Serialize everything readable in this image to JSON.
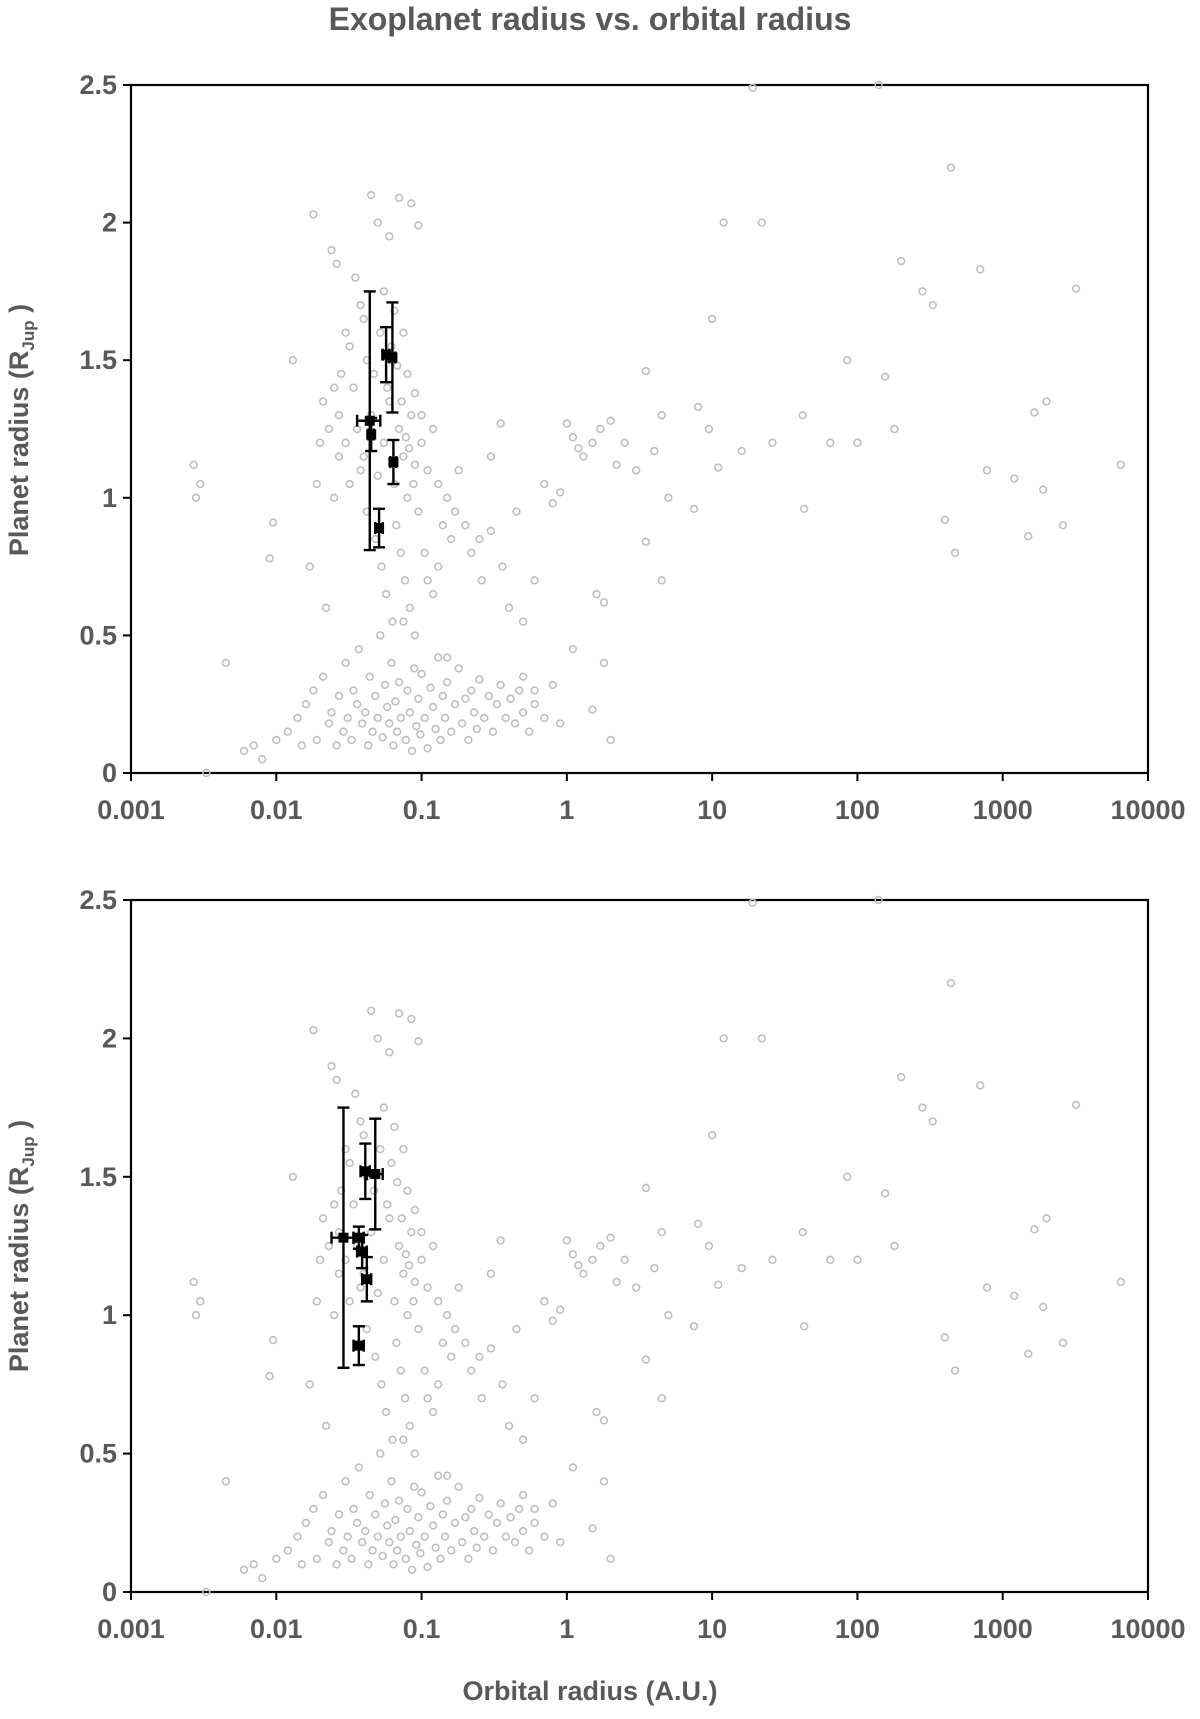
{
  "figure": {
    "title": "Exoplanet radius vs. orbital radius",
    "xlabel": "Orbital radius (A.U.)",
    "ylabel_main": "Planet radius (R",
    "ylabel_sub": "Jup",
    "ylabel_tail": " )"
  },
  "chart_data": [
    {
      "type": "scatter",
      "title": "Exoplanet radius vs. orbital radius",
      "xlabel": "",
      "ylabel": "Planet radius (RJup )",
      "xscale": "log",
      "xlim": [
        0.001,
        10000
      ],
      "ylim": [
        0,
        2.5
      ],
      "xticks": [
        "0.001",
        "0.01",
        "0.1",
        "1",
        "10",
        "100",
        "1000",
        "10000"
      ],
      "yticks": [
        "0",
        "0.5",
        "1",
        "1.5",
        "2",
        "2.5"
      ],
      "grid": false,
      "legend": "none",
      "colors": {
        "background_points": "#bfbfbf",
        "highlight_points": "#000000"
      },
      "series": [
        {
          "role": "highlight",
          "points": [
            {
              "x": 0.044,
              "y": 1.28,
              "xerr": 0.008,
              "yerr": 0.47
            },
            {
              "x": 0.057,
              "y": 1.52,
              "xerr": 0.003,
              "yerr": 0.1
            },
            {
              "x": 0.063,
              "y": 1.51,
              "xerr": 0.003,
              "yerr": 0.2
            },
            {
              "x": 0.045,
              "y": 1.23,
              "xerr": 0.002,
              "yerr": 0.06
            },
            {
              "x": 0.064,
              "y": 1.13,
              "xerr": 0.003,
              "yerr": 0.08
            },
            {
              "x": 0.051,
              "y": 0.89,
              "xerr": 0.003,
              "yerr": 0.07
            }
          ]
        }
      ]
    },
    {
      "type": "scatter",
      "xlabel": "Orbital radius (A.U.)",
      "ylabel": "Planet radius (RJup )",
      "xscale": "log",
      "xlim": [
        0.001,
        10000
      ],
      "ylim": [
        0,
        2.5
      ],
      "xticks": [
        "0.001",
        "0.01",
        "0.1",
        "1",
        "10",
        "100",
        "1000",
        "10000"
      ],
      "yticks": [
        "0",
        "0.5",
        "1",
        "1.5",
        "2",
        "2.5"
      ],
      "grid": false,
      "legend": "none",
      "colors": {
        "background_points": "#bfbfbf",
        "highlight_points": "#000000"
      },
      "series": [
        {
          "role": "highlight",
          "points": [
            {
              "x": 0.029,
              "y": 1.28,
              "xerr": 0.005,
              "yerr": 0.47
            },
            {
              "x": 0.041,
              "y": 1.52,
              "xerr": 0.003,
              "yerr": 0.1
            },
            {
              "x": 0.048,
              "y": 1.51,
              "xerr": 0.006,
              "yerr": 0.2
            },
            {
              "x": 0.037,
              "y": 1.28,
              "xerr": 0.003,
              "yerr": 0.04
            },
            {
              "x": 0.039,
              "y": 1.23,
              "xerr": 0.003,
              "yerr": 0.06
            },
            {
              "x": 0.042,
              "y": 1.13,
              "xerr": 0.003,
              "yerr": 0.08
            },
            {
              "x": 0.037,
              "y": 0.89,
              "xerr": 0.003,
              "yerr": 0.07
            }
          ]
        }
      ]
    }
  ],
  "background_points": [
    [
      0.0027,
      1.12
    ],
    [
      0.0028,
      1.0
    ],
    [
      0.003,
      1.05
    ],
    [
      0.0033,
      0.0
    ],
    [
      0.0045,
      0.4
    ],
    [
      0.009,
      0.78
    ],
    [
      0.0095,
      0.91
    ],
    [
      0.018,
      2.03
    ],
    [
      0.024,
      1.9
    ],
    [
      0.026,
      1.85
    ],
    [
      0.013,
      1.5
    ],
    [
      0.017,
      0.75
    ],
    [
      0.02,
      1.2
    ],
    [
      0.022,
      0.6
    ],
    [
      0.045,
      2.1
    ],
    [
      0.07,
      2.09
    ],
    [
      0.085,
      2.07
    ],
    [
      0.05,
      2.0
    ],
    [
      0.095,
      1.99
    ],
    [
      0.06,
      1.95
    ],
    [
      0.035,
      1.8
    ],
    [
      0.04,
      1.65
    ],
    [
      0.038,
      1.7
    ],
    [
      0.03,
      1.6
    ],
    [
      0.028,
      1.45
    ],
    [
      0.025,
      1.4
    ],
    [
      0.027,
      1.3
    ],
    [
      0.032,
      1.55
    ],
    [
      0.055,
      1.75
    ],
    [
      0.065,
      1.68
    ],
    [
      0.075,
      1.6
    ],
    [
      0.08,
      1.45
    ],
    [
      0.09,
      1.38
    ],
    [
      0.1,
      1.3
    ],
    [
      0.12,
      1.25
    ],
    [
      0.11,
      1.1
    ],
    [
      0.13,
      1.05
    ],
    [
      0.15,
      1.0
    ],
    [
      0.17,
      0.95
    ],
    [
      0.2,
      0.9
    ],
    [
      0.25,
      0.85
    ],
    [
      0.3,
      1.15
    ],
    [
      0.35,
      1.27
    ],
    [
      0.4,
      0.6
    ],
    [
      0.45,
      0.95
    ],
    [
      0.5,
      0.55
    ],
    [
      0.6,
      0.7
    ],
    [
      0.7,
      1.05
    ],
    [
      0.8,
      0.98
    ],
    [
      0.9,
      1.02
    ],
    [
      1.0,
      1.27
    ],
    [
      1.1,
      1.22
    ],
    [
      1.2,
      1.18
    ],
    [
      1.3,
      1.15
    ],
    [
      1.5,
      1.2
    ],
    [
      1.7,
      1.25
    ],
    [
      2.0,
      1.28
    ],
    [
      2.2,
      1.12
    ],
    [
      2.5,
      1.2
    ],
    [
      3.0,
      1.1
    ],
    [
      3.5,
      1.46
    ],
    [
      4.0,
      1.17
    ],
    [
      4.5,
      1.3
    ],
    [
      5.0,
      1.0
    ],
    [
      4.5,
      0.7
    ],
    [
      3.5,
      0.84
    ],
    [
      1.6,
      0.65
    ],
    [
      1.8,
      0.62
    ],
    [
      1.5,
      0.23
    ],
    [
      2.0,
      0.12
    ],
    [
      1.8,
      0.4
    ],
    [
      1.1,
      0.45
    ],
    [
      0.6,
      0.3
    ],
    [
      0.5,
      0.35
    ],
    [
      0.15,
      0.42
    ],
    [
      7.5,
      0.96
    ],
    [
      8.0,
      1.33
    ],
    [
      9.5,
      1.25
    ],
    [
      10.0,
      1.65
    ],
    [
      11.0,
      1.11
    ],
    [
      12.0,
      2.0
    ],
    [
      16.0,
      1.17
    ],
    [
      19.0,
      2.49
    ],
    [
      22.0,
      2.0
    ],
    [
      26.0,
      1.2
    ],
    [
      42.0,
      1.3
    ],
    [
      43.0,
      0.96
    ],
    [
      65.0,
      1.2
    ],
    [
      85.0,
      1.5
    ],
    [
      100.0,
      1.2
    ],
    [
      140.0,
      2.5
    ],
    [
      155.0,
      1.44
    ],
    [
      180.0,
      1.25
    ],
    [
      200.0,
      1.86
    ],
    [
      280.0,
      1.75
    ],
    [
      330.0,
      1.7
    ],
    [
      400.0,
      0.92
    ],
    [
      440.0,
      2.2
    ],
    [
      470.0,
      0.8
    ],
    [
      700.0,
      1.83
    ],
    [
      780.0,
      1.1
    ],
    [
      1200.0,
      1.07
    ],
    [
      1500.0,
      0.86
    ],
    [
      1650.0,
      1.31
    ],
    [
      1900.0,
      1.03
    ],
    [
      2000.0,
      1.35
    ],
    [
      2600.0,
      0.9
    ],
    [
      3200.0,
      1.76
    ],
    [
      6500.0,
      1.12
    ],
    [
      0.006,
      0.08
    ],
    [
      0.007,
      0.1
    ],
    [
      0.008,
      0.05
    ],
    [
      0.01,
      0.12
    ],
    [
      0.012,
      0.15
    ],
    [
      0.014,
      0.2
    ],
    [
      0.015,
      0.1
    ],
    [
      0.016,
      0.25
    ],
    [
      0.018,
      0.3
    ],
    [
      0.019,
      0.12
    ],
    [
      0.021,
      0.35
    ],
    [
      0.023,
      0.18
    ],
    [
      0.024,
      0.22
    ],
    [
      0.026,
      0.1
    ],
    [
      0.027,
      0.28
    ],
    [
      0.029,
      0.15
    ],
    [
      0.03,
      0.4
    ],
    [
      0.031,
      0.2
    ],
    [
      0.033,
      0.12
    ],
    [
      0.034,
      0.3
    ],
    [
      0.036,
      0.25
    ],
    [
      0.037,
      0.45
    ],
    [
      0.039,
      0.18
    ],
    [
      0.041,
      0.22
    ],
    [
      0.043,
      0.1
    ],
    [
      0.044,
      0.35
    ],
    [
      0.046,
      0.15
    ],
    [
      0.048,
      0.28
    ],
    [
      0.05,
      0.2
    ],
    [
      0.052,
      0.5
    ],
    [
      0.054,
      0.13
    ],
    [
      0.056,
      0.32
    ],
    [
      0.058,
      0.24
    ],
    [
      0.06,
      0.18
    ],
    [
      0.062,
      0.4
    ],
    [
      0.064,
      0.1
    ],
    [
      0.066,
      0.26
    ],
    [
      0.068,
      0.15
    ],
    [
      0.07,
      0.33
    ],
    [
      0.072,
      0.2
    ],
    [
      0.075,
      0.55
    ],
    [
      0.078,
      0.12
    ],
    [
      0.08,
      0.3
    ],
    [
      0.083,
      0.22
    ],
    [
      0.086,
      0.08
    ],
    [
      0.089,
      0.38
    ],
    [
      0.092,
      0.17
    ],
    [
      0.095,
      0.27
    ],
    [
      0.098,
      0.14
    ],
    [
      0.1,
      0.36
    ],
    [
      0.105,
      0.2
    ],
    [
      0.11,
      0.09
    ],
    [
      0.115,
      0.31
    ],
    [
      0.12,
      0.24
    ],
    [
      0.125,
      0.16
    ],
    [
      0.13,
      0.42
    ],
    [
      0.135,
      0.12
    ],
    [
      0.14,
      0.28
    ],
    [
      0.145,
      0.2
    ],
    [
      0.15,
      0.33
    ],
    [
      0.16,
      0.15
    ],
    [
      0.17,
      0.25
    ],
    [
      0.18,
      0.38
    ],
    [
      0.19,
      0.18
    ],
    [
      0.2,
      0.27
    ],
    [
      0.21,
      0.12
    ],
    [
      0.22,
      0.3
    ],
    [
      0.23,
      0.22
    ],
    [
      0.24,
      0.16
    ],
    [
      0.25,
      0.34
    ],
    [
      0.27,
      0.2
    ],
    [
      0.29,
      0.28
    ],
    [
      0.31,
      0.15
    ],
    [
      0.33,
      0.25
    ],
    [
      0.35,
      0.32
    ],
    [
      0.38,
      0.2
    ],
    [
      0.41,
      0.27
    ],
    [
      0.44,
      0.18
    ],
    [
      0.47,
      0.3
    ],
    [
      0.5,
      0.22
    ],
    [
      0.55,
      0.15
    ],
    [
      0.6,
      0.25
    ],
    [
      0.7,
      0.2
    ],
    [
      0.8,
      0.32
    ],
    [
      0.9,
      0.18
    ],
    [
      0.04,
      1.15
    ],
    [
      0.045,
      1.3
    ],
    [
      0.05,
      1.08
    ],
    [
      0.055,
      1.2
    ],
    [
      0.06,
      1.35
    ],
    [
      0.065,
      1.05
    ],
    [
      0.07,
      1.25
    ],
    [
      0.075,
      1.15
    ],
    [
      0.08,
      1.0
    ],
    [
      0.085,
      1.3
    ],
    [
      0.09,
      1.12
    ],
    [
      0.03,
      1.2
    ],
    [
      0.032,
      1.05
    ],
    [
      0.034,
      1.4
    ],
    [
      0.036,
      1.25
    ],
    [
      0.038,
      1.1
    ],
    [
      0.042,
      1.5
    ],
    [
      0.047,
      1.45
    ],
    [
      0.052,
      1.6
    ],
    [
      0.058,
      1.4
    ],
    [
      0.062,
      1.55
    ],
    [
      0.068,
      1.48
    ],
    [
      0.073,
      1.35
    ],
    [
      0.078,
      1.22
    ],
    [
      0.082,
      1.18
    ],
    [
      0.088,
      1.05
    ],
    [
      0.095,
      0.95
    ],
    [
      0.1,
      1.2
    ],
    [
      0.105,
      0.8
    ],
    [
      0.11,
      0.7
    ],
    [
      0.12,
      0.65
    ],
    [
      0.13,
      0.75
    ],
    [
      0.14,
      0.9
    ],
    [
      0.16,
      0.85
    ],
    [
      0.18,
      1.1
    ],
    [
      0.22,
      0.8
    ],
    [
      0.26,
      0.7
    ],
    [
      0.3,
      0.88
    ],
    [
      0.36,
      0.75
    ],
    [
      0.042,
      0.95
    ],
    [
      0.048,
      0.85
    ],
    [
      0.053,
      0.75
    ],
    [
      0.057,
      0.65
    ],
    [
      0.063,
      0.55
    ],
    [
      0.067,
      0.9
    ],
    [
      0.072,
      0.8
    ],
    [
      0.077,
      0.7
    ],
    [
      0.083,
      0.6
    ],
    [
      0.09,
      0.5
    ],
    [
      0.025,
      1.0
    ],
    [
      0.027,
      1.15
    ],
    [
      0.023,
      1.25
    ],
    [
      0.021,
      1.35
    ],
    [
      0.019,
      1.05
    ]
  ]
}
